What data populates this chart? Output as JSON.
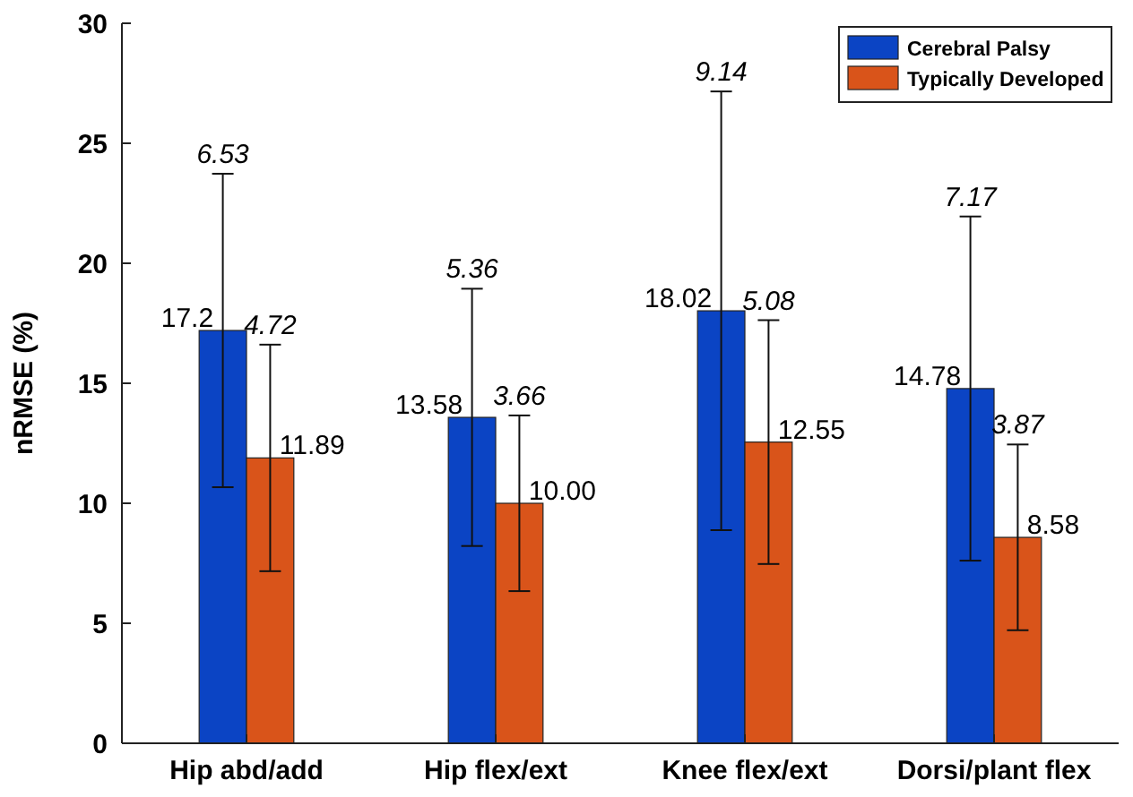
{
  "chart_data": {
    "type": "bar",
    "ylabel": "nRMSE (%)",
    "categories": [
      "Hip abd/add",
      "Hip flex/ext",
      "Knee flex/ext",
      "Dorsi/plant flex"
    ],
    "series": [
      {
        "name": "Cerebral Palsy",
        "color": "#0b44c4",
        "values": [
          17.2,
          13.58,
          18.02,
          14.78
        ],
        "errors": [
          6.53,
          5.36,
          9.14,
          7.17
        ],
        "value_labels": [
          "17.2",
          "13.58",
          "18.02",
          "14.78"
        ]
      },
      {
        "name": "Typically Developed",
        "color": "#d9541a",
        "values": [
          11.89,
          10.0,
          12.55,
          8.58
        ],
        "errors": [
          4.72,
          3.66,
          5.08,
          3.87
        ],
        "value_labels": [
          "11.89",
          "10.00",
          "12.55",
          "8.58"
        ]
      }
    ],
    "annotations": [
      "6.53",
      "5.36",
      "9.14",
      "7.17",
      "4.72",
      "3.66",
      "5.08",
      "3.87"
    ],
    "ylim": [
      0,
      30
    ],
    "yticks": [
      0,
      5,
      10,
      15,
      20,
      25,
      30
    ],
    "grid": false,
    "legend": "top right"
  }
}
